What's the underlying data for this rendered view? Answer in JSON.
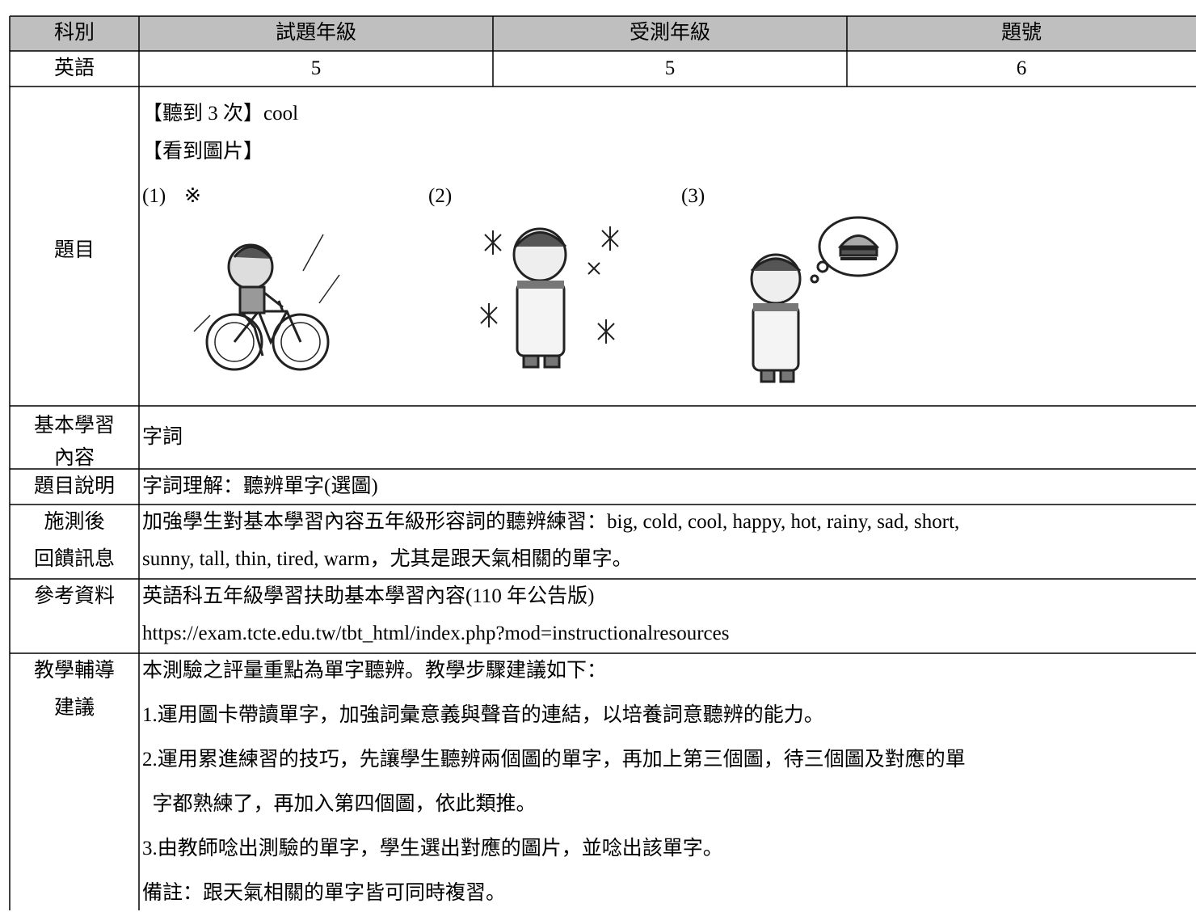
{
  "table": {
    "header": [
      "科別",
      "試題年級",
      "受測年級",
      "題號"
    ],
    "row": [
      "英語",
      "5",
      "5",
      "6"
    ]
  },
  "question": {
    "label": "題目",
    "lines": [
      "【聽到 3 次】cool",
      "【看到圖片】"
    ],
    "options": [
      "(1)",
      "(2)",
      "(3)"
    ],
    "mark": "※"
  },
  "sections": [
    {
      "label": [
        "基本學習",
        "內容"
      ],
      "content": [
        "字詞"
      ]
    },
    {
      "label": [
        "題目說明"
      ],
      "content": [
        "字詞理解：聽辨單字(選圖)"
      ]
    },
    {
      "label": [
        "施測後",
        "回饋訊息"
      ],
      "content": [
        "加強學生對基本學習內容五年級形容詞的聽辨練習：big, cold, cool, happy, hot, rainy, sad, short,",
        "sunny, tall, thin, tired, warm，尤其是跟天氣相關的單字。"
      ]
    },
    {
      "label": [
        "參考資料"
      ],
      "content": [
        "英語科五年級學習扶助基本學習內容(110 年公告版)",
        "https://exam.tcte.edu.tw/tbt_html/index.php?mod=instructionalresources"
      ]
    },
    {
      "label": [
        "教學輔導",
        "建議"
      ],
      "content": [
        "本測驗之評量重點為單字聽辨。教學步驟建議如下：",
        "1.運用圖卡帶讀單字，加強詞彙意義與聲音的連結，以培養詞意聽辨的能力。",
        "2.運用累進練習的技巧，先讓學生聽辨兩個圖的單字，再加上第三個圖，待三個圖及對應的單",
        "  字都熟練了，再加入第四個圖，依此類推。",
        "3.由教師唸出測驗的單字，學生選出對應的圖片，並唸出該單字。",
        "備註：跟天氣相關的單字皆可同時複習。"
      ]
    }
  ]
}
